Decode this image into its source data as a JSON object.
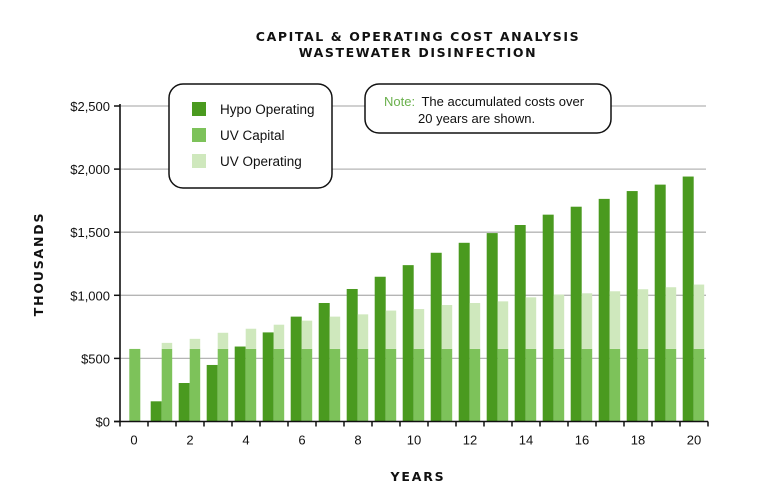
{
  "chart_data": {
    "type": "bar",
    "title": "CAPITAL & OPERATING COST ANALYSIS",
    "subtitle": "WASTEWATER DISINFECTION",
    "xlabel": "YEARS",
    "ylabel": "THOUSANDS",
    "ylim": [
      0,
      2500
    ],
    "yticks": [
      "$0",
      "$500",
      "$1,000",
      "$1,500",
      "$2,000",
      "$2,500"
    ],
    "ytick_values": [
      0,
      500,
      1000,
      1500,
      2000,
      2500
    ],
    "xticks": [
      "0",
      "2",
      "4",
      "6",
      "8",
      "10",
      "12",
      "14",
      "16",
      "18",
      "20"
    ],
    "grid": true,
    "legend_position": "top-left",
    "x": [
      0,
      1,
      2,
      3,
      4,
      5,
      6,
      7,
      8,
      9,
      10,
      11,
      12,
      13,
      14,
      15,
      16,
      17,
      18,
      19,
      20
    ],
    "series": [
      {
        "name": "Hypo Operating",
        "color": "#4a9a1f",
        "stack": "hypo",
        "values": [
          0,
          160,
          305,
          448,
          594,
          706,
          831,
          939,
          1050,
          1147,
          1239,
          1337,
          1416,
          1493,
          1557,
          1639,
          1702,
          1764,
          1826,
          1877,
          1941
        ]
      },
      {
        "name": "UV Capital",
        "color": "#7dc25a",
        "stack": "uv",
        "values": [
          575,
          575,
          575,
          575,
          575,
          575,
          575,
          575,
          575,
          575,
          575,
          575,
          575,
          575,
          575,
          575,
          575,
          575,
          575,
          575,
          575
        ]
      },
      {
        "name": "UV Operating",
        "color": "#cfe8bd",
        "stack": "uv",
        "values": [
          0,
          48,
          80,
          128,
          160,
          192,
          224,
          256,
          274,
          304,
          316,
          348,
          364,
          377,
          409,
          431,
          441,
          457,
          473,
          489,
          510
        ]
      }
    ],
    "annotation": {
      "label": "Note:",
      "label_color": "#6ab04c",
      "text_line1": "The accumulated costs over",
      "text_line2": "20 years are shown."
    }
  }
}
